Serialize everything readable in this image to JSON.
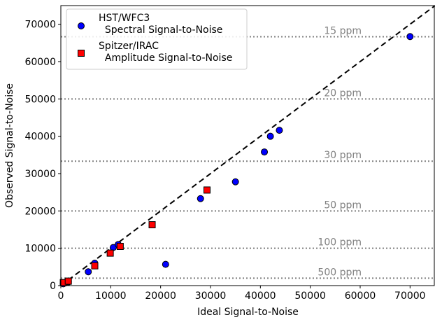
{
  "chart_data": {
    "type": "scatter",
    "xlabel": "Ideal Signal-to-Noise",
    "ylabel": "Observed Signal-to-Noise",
    "xlim": [
      0,
      75000
    ],
    "ylim": [
      0,
      75000
    ],
    "xticks": [
      0,
      10000,
      20000,
      30000,
      40000,
      50000,
      60000,
      70000
    ],
    "yticks": [
      0,
      10000,
      20000,
      30000,
      40000,
      50000,
      60000,
      70000
    ],
    "grid": false,
    "legend_position": "top-left",
    "series": [
      {
        "name": "HST/WFC3\n  Spectral Signal-to-Noise",
        "marker": "circle",
        "color": "#0000ff",
        "x": [
          500,
          1000,
          1500,
          5500,
          6800,
          10500,
          11500,
          21000,
          28000,
          35000,
          40800,
          42000,
          43800,
          70000
        ],
        "y": [
          500,
          800,
          1000,
          3700,
          6000,
          10200,
          11000,
          5700,
          23300,
          27800,
          35800,
          40000,
          41600,
          66700
        ]
      },
      {
        "name": "Spitzer/IRAC\n  Amplitude Signal-to-Noise",
        "marker": "square",
        "color": "#ff0000",
        "x": [
          500,
          1500,
          6800,
          9900,
          11900,
          18300,
          29300
        ],
        "y": [
          800,
          1200,
          5300,
          8700,
          10500,
          16300,
          25600
        ]
      }
    ],
    "reference_lines": [
      {
        "type": "diagonal",
        "label": "",
        "style": "dashed",
        "color": "#000000"
      }
    ],
    "horizontal_lines": [
      {
        "y": 66667,
        "label": "15 ppm"
      },
      {
        "y": 50000,
        "label": "20 ppm"
      },
      {
        "y": 33333,
        "label": "30 ppm"
      },
      {
        "y": 20000,
        "label": "50 ppm"
      },
      {
        "y": 10000,
        "label": "100 ppm"
      },
      {
        "y": 2000,
        "label": "500 ppm"
      }
    ],
    "hline_color": "#808080"
  }
}
